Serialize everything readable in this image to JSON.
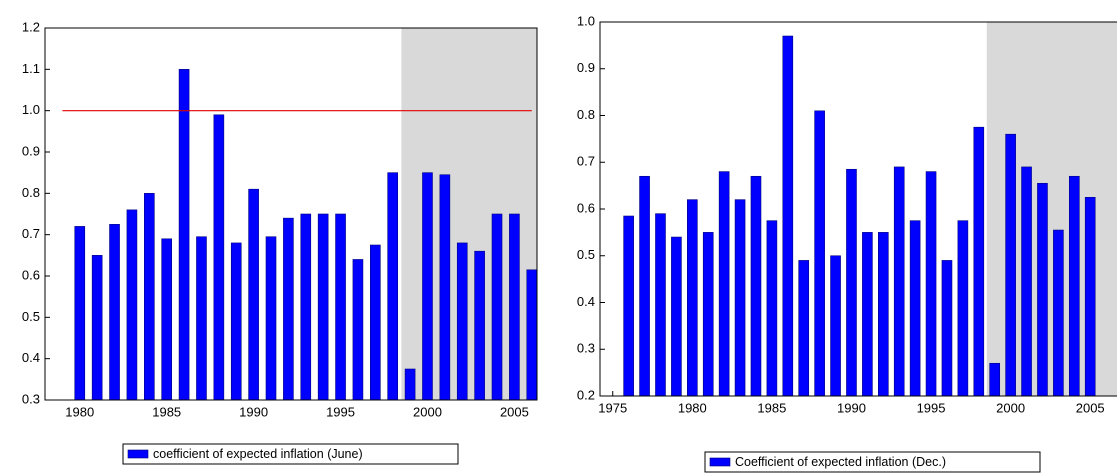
{
  "chart_data": [
    {
      "type": "bar",
      "x": [
        1980,
        1981,
        1982,
        1983,
        1984,
        1985,
        1986,
        1987,
        1988,
        1989,
        1990,
        1991,
        1992,
        1993,
        1994,
        1995,
        1996,
        1997,
        1998,
        1999,
        2000,
        2001,
        2002,
        2003,
        2004,
        2005,
        2006
      ],
      "series": [
        {
          "name": "coefficient of expected inflation (June)",
          "color": "#0000ff",
          "values": [
            0.72,
            0.65,
            0.725,
            0.76,
            0.8,
            0.69,
            1.1,
            0.695,
            0.99,
            0.68,
            0.81,
            0.695,
            0.74,
            0.75,
            0.75,
            0.75,
            0.64,
            0.675,
            0.85,
            0.375,
            0.85,
            0.845,
            0.68,
            0.66,
            0.75,
            0.75,
            0.615
          ]
        }
      ],
      "xlim": [
        1978,
        2006.3
      ],
      "xticks": [
        1980,
        1985,
        1990,
        1995,
        2000,
        2005
      ],
      "ylim": [
        0.3,
        1.2
      ],
      "yticks": [
        0.3,
        0.4,
        0.5,
        0.6,
        0.7,
        0.8,
        0.9,
        {
          "value": 1,
          "label": "1.0"
        },
        1.1,
        1.2
      ],
      "shaded_x": [
        1998.5,
        2006.3
      ],
      "shade_color": "#d9d9d9",
      "reference_line": {
        "y": 1,
        "x": [
          1979,
          2006
        ],
        "color": "#e00000"
      }
    },
    {
      "type": "bar",
      "x": [
        1976,
        1977,
        1978,
        1979,
        1980,
        1981,
        1982,
        1983,
        1984,
        1985,
        1986,
        1987,
        1988,
        1989,
        1990,
        1991,
        1992,
        1993,
        1994,
        1995,
        1996,
        1997,
        1998,
        1999,
        2000,
        2001,
        2002,
        2003,
        2004,
        2005
      ],
      "series": [
        {
          "name": "Coefficient of expected inflation (Dec.)",
          "color": "#0000ff",
          "values": [
            0.585,
            0.67,
            0.59,
            0.54,
            0.62,
            0.55,
            0.68,
            0.62,
            0.67,
            0.575,
            0.97,
            0.49,
            0.81,
            0.5,
            0.685,
            0.55,
            0.55,
            0.69,
            0.575,
            0.68,
            0.49,
            0.575,
            0.775,
            0.27,
            0.76,
            0.69,
            0.655,
            0.555,
            0.67,
            0.625
          ]
        }
      ],
      "xlim": [
        1974.2,
        2007.5
      ],
      "xticks": [
        1975,
        1980,
        1985,
        1990,
        1995,
        2000,
        2005
      ],
      "ylim": [
        0.2,
        1.0
      ],
      "yticks": [
        0.2,
        0.3,
        0.4,
        0.5,
        0.6,
        0.7,
        0.8,
        0.9,
        {
          "value": 1,
          "label": "1.0"
        }
      ],
      "shaded_x": [
        1998.5,
        2007.5
      ],
      "shade_color": "#d9d9d9"
    }
  ]
}
